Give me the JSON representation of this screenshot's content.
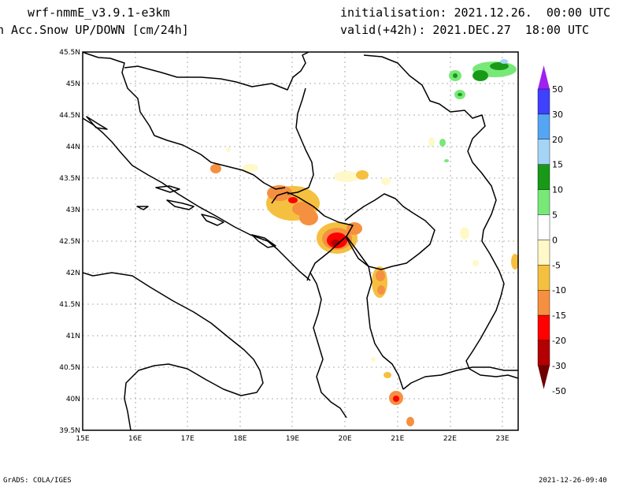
{
  "header": {
    "model": "wrf-nmmE_v3.9.1-e3km",
    "variable": "n Acc.Snow UP/DOWN [cm/24h]",
    "init": "initialisation: 2021.12.26.  00:00 UTC",
    "valid": "valid(+42h): 2021.DEC.27  18:00 UTC"
  },
  "axes": {
    "lon_ticks": [
      "15E",
      "16E",
      "17E",
      "18E",
      "19E",
      "20E",
      "21E",
      "22E",
      "23E"
    ],
    "lat_ticks": [
      "45.5N",
      "45N",
      "44.5N",
      "44N",
      "43.5N",
      "43N",
      "42.5N",
      "42N",
      "41.5N",
      "41N",
      "40.5N",
      "40N",
      "39.5N"
    ],
    "lon_range": [
      15,
      23.3
    ],
    "lat_range": [
      39.5,
      45.5
    ]
  },
  "legend": {
    "labels": [
      "50",
      "30",
      "20",
      "15",
      "10",
      "5",
      "0",
      "-5",
      "-10",
      "-15",
      "-20",
      "-30",
      "-50"
    ],
    "colors": [
      "#a020f0",
      "#4040ff",
      "#55a5f5",
      "#a5d5f5",
      "#189a18",
      "#78e878",
      "#ffffff",
      "#fff8c8",
      "#f5c040",
      "#f59040",
      "#ff0000",
      "#b40000",
      "#6e0000"
    ]
  },
  "footer": {
    "left": "GrADS: COLA/IGES",
    "right": "2021-12-26-09:40"
  }
}
